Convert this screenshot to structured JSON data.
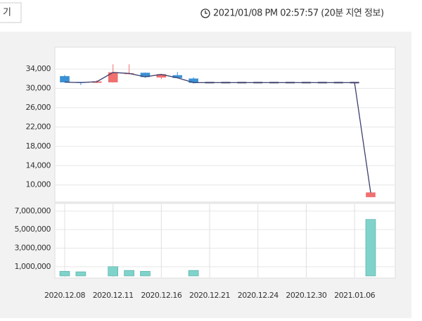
{
  "header": {
    "button": "기",
    "timestamp": "2021/01/08 PM 02:57:57 (20분 지연 정보)"
  },
  "chart_data": {
    "type": "candlestick",
    "categories": [
      "2020.12.08",
      null,
      null,
      "2020.12.11",
      null,
      null,
      "2020.12.16",
      null,
      null,
      "2020.12.21",
      null,
      null,
      "2020.12.24",
      null,
      null,
      "2020.12.30",
      null,
      null,
      "2021.01.06",
      null
    ],
    "open": [
      32500,
      31300,
      31200,
      31300,
      33000,
      33200,
      32300,
      32700,
      32000,
      31200,
      31200,
      31200,
      31200,
      31200,
      31200,
      31200,
      31200,
      31200,
      31200,
      7500
    ],
    "high": [
      32800,
      31300,
      31700,
      35000,
      35000,
      33300,
      33000,
      33400,
      32300,
      31200,
      31200,
      31200,
      31200,
      31200,
      31200,
      31200,
      31200,
      31200,
      31200,
      8400
    ],
    "low": [
      31200,
      30700,
      31100,
      31200,
      32900,
      32200,
      31900,
      32100,
      31000,
      31200,
      31200,
      31200,
      31200,
      31200,
      31200,
      31200,
      31200,
      31200,
      31200,
      7500
    ],
    "close": [
      31300,
      31200,
      31400,
      33300,
      33100,
      32400,
      32900,
      32200,
      31200,
      31200,
      31200,
      31200,
      31200,
      31200,
      31200,
      31200,
      31200,
      31200,
      31200,
      8400
    ],
    "volume": [
      500000,
      450000,
      0,
      1000000,
      600000,
      500000,
      0,
      0,
      600000,
      0,
      0,
      0,
      0,
      0,
      0,
      0,
      0,
      0,
      0,
      6100000
    ],
    "colors": {
      "up": "#f07070",
      "down": "#3a90d4",
      "flat": "#3b3f6b",
      "line": "#3b3f6b",
      "volume": "#7fd3cb"
    },
    "ylim": [
      6600,
      38400
    ],
    "yticks": [
      {
        "value": 10000,
        "label": "10,000"
      },
      {
        "value": 14000,
        "label": "14,000"
      },
      {
        "value": 18000,
        "label": "18,000"
      },
      {
        "value": 22000,
        "label": "22,000"
      },
      {
        "value": 26000,
        "label": "26,000"
      },
      {
        "value": 30000,
        "label": "30,000"
      },
      {
        "value": 34000,
        "label": "34,000"
      }
    ],
    "y2lim": [
      0,
      7900000
    ],
    "y2ticks": [
      {
        "value": 1000000,
        "label": "1,000,000"
      },
      {
        "value": 3000000,
        "label": "3,000,000"
      },
      {
        "value": 5000000,
        "label": "5,000,000"
      },
      {
        "value": 7000000,
        "label": "7,000,000"
      }
    ],
    "grid": true
  }
}
